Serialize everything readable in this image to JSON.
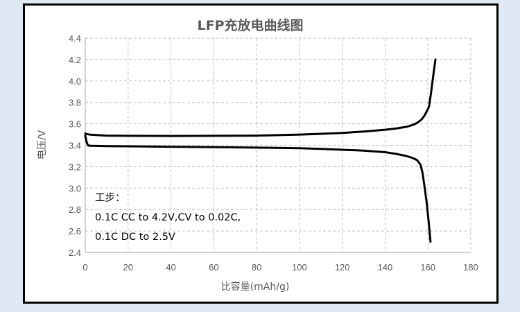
{
  "chart_data": {
    "type": "line",
    "title": "LFP充放电曲线图",
    "xlabel": "比容量(mAh/g)",
    "ylabel": "电压/V",
    "xlim": [
      0,
      180
    ],
    "ylim": [
      2.4,
      4.4
    ],
    "xticks": [
      "0",
      "20",
      "40",
      "60",
      "80",
      "100",
      "120",
      "140",
      "160",
      "180"
    ],
    "yticks": [
      "2.4",
      "2.6",
      "2.8",
      "3.0",
      "3.2",
      "3.4",
      "3.6",
      "3.8",
      "4.0",
      "4.2",
      "4.4"
    ],
    "grid": true,
    "legend": "none",
    "annotation": [
      "工步：",
      "0.1C CC to 4.2V,CV to 0.02C,",
      "0.1C DC to 2.5V"
    ],
    "series": [
      {
        "x": [
          0,
          0.5,
          2,
          5,
          10,
          20,
          40,
          60,
          80,
          100,
          110,
          120,
          130,
          140,
          145,
          150,
          153,
          155,
          157,
          158.5,
          159.5,
          160.5,
          161.5,
          162.5,
          163.5
        ],
        "y": [
          3.51,
          3.505,
          3.5,
          3.495,
          3.49,
          3.488,
          3.487,
          3.488,
          3.49,
          3.5,
          3.507,
          3.515,
          3.528,
          3.545,
          3.556,
          3.572,
          3.59,
          3.61,
          3.64,
          3.68,
          3.72,
          3.76,
          3.9,
          4.05,
          4.2
        ]
      },
      {
        "x": [
          0,
          0.5,
          1,
          1.5,
          3,
          5,
          10,
          20,
          40,
          60,
          80,
          100,
          110,
          120,
          130,
          140,
          145,
          150,
          153,
          155,
          156.5,
          157.5,
          158.5,
          159.5,
          160.5,
          161.2
        ],
        "y": [
          3.49,
          3.44,
          3.41,
          3.397,
          3.395,
          3.394,
          3.392,
          3.39,
          3.386,
          3.382,
          3.378,
          3.372,
          3.366,
          3.358,
          3.35,
          3.335,
          3.32,
          3.3,
          3.28,
          3.26,
          3.22,
          3.14,
          3.0,
          2.85,
          2.65,
          2.5
        ]
      }
    ]
  },
  "colors": {
    "line": "#000000",
    "grid": "#bfbfbf",
    "axis": "#a6a6a6",
    "text": "#595959"
  }
}
